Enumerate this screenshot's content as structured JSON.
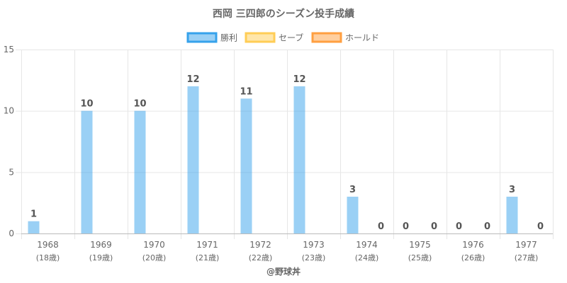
{
  "chart_data": {
    "type": "bar",
    "title": "西岡 三四郎のシーズン投手成績",
    "categories": [
      "1968",
      "1969",
      "1970",
      "1971",
      "1972",
      "1973",
      "1974",
      "1975",
      "1976",
      "1977"
    ],
    "category_sublabels": [
      "(18歳)",
      "(19歳)",
      "(20歳)",
      "(21歳)",
      "(22歳)",
      "(23歳)",
      "(24歳)",
      "(25歳)",
      "(26歳)",
      "(27歳)"
    ],
    "series": [
      {
        "name": "勝利",
        "values": [
          1,
          10,
          10,
          12,
          11,
          12,
          3,
          0,
          0,
          3
        ],
        "color": "#36a2eb"
      },
      {
        "name": "セーブ",
        "values": [
          null,
          null,
          null,
          null,
          null,
          null,
          null,
          null,
          null,
          null
        ],
        "color": "#ffcd56"
      },
      {
        "name": "ホールド",
        "values": [
          null,
          null,
          null,
          null,
          null,
          null,
          0,
          0,
          0,
          0
        ],
        "color": "#ff9f40"
      }
    ],
    "ylim": [
      0,
      15
    ],
    "yticks": [
      0,
      5,
      10,
      15
    ],
    "grid": true,
    "legend_position": "top",
    "xlabel": "",
    "ylabel": ""
  },
  "credit": "@野球丼"
}
